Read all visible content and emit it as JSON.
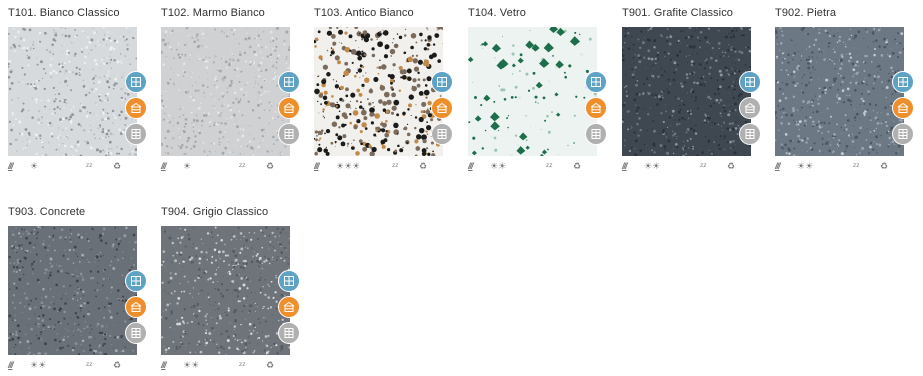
{
  "colors": {
    "badge_blue": "#5ea3c6",
    "badge_orange": "#ef8f2c",
    "badge_gray": "#b0b0b0"
  },
  "badge_icons": [
    "window-sill-icon",
    "worktop-icon",
    "wall-cladding-icon"
  ],
  "property_icons": [
    "traffic-icon",
    "sun-icon",
    "wave-icon",
    "recycle-icon"
  ],
  "products": [
    {
      "label": "T101. Bianco Classico",
      "sun_count": 1,
      "badge2": "orange",
      "base": "#d6dadd",
      "speck_dark": "#8f959a",
      "speck_light": "#eef0f1",
      "speck_accent": "#b9bec2"
    },
    {
      "label": "T102. Marmo Bianco",
      "sun_count": 1,
      "badge2": "orange",
      "base": "#cfd1d3",
      "speck_dark": "#a4a7aa",
      "speck_light": "#e4e5e6",
      "speck_accent": "#b8babc"
    },
    {
      "label": "T103. Antico Bianco",
      "sun_count": 3,
      "badge2": "orange",
      "base": "#f2f0ec",
      "speck_dark": "#1b1b1b",
      "speck_light": "#7a6b5c",
      "speck_accent": "#c08a4a"
    },
    {
      "label": "T104. Vetro",
      "sun_count": 2,
      "badge2": "orange",
      "base": "#edf3f0",
      "speck_dark": "#1f6e4b",
      "speck_light": "#9cc4b1",
      "speck_accent": "#dfe9e4"
    },
    {
      "label": "T901. Grafite Classico",
      "sun_count": 2,
      "badge2": "gray",
      "base": "#3f4851",
      "speck_dark": "#2a3139",
      "speck_light": "#6e7780",
      "speck_accent": "#8b939b"
    },
    {
      "label": "T902. Pietra",
      "sun_count": 2,
      "badge2": "orange",
      "base": "#6c7985",
      "speck_dark": "#4b5660",
      "speck_light": "#9aa5ae",
      "speck_accent": "#c4cbd1"
    },
    {
      "label": "T903. Concrete",
      "sun_count": 2,
      "badge2": "orange",
      "base": "#6a7077",
      "speck_dark": "#3f4449",
      "speck_light": "#8a9096",
      "speck_accent": "#a5abb0"
    },
    {
      "label": "T904. Grigio Classico",
      "sun_count": 2,
      "badge2": "orange",
      "base": "#6f747a",
      "speck_dark": "#555a60",
      "speck_light": "#b8bdc2",
      "speck_accent": "#d6d9dc"
    }
  ]
}
